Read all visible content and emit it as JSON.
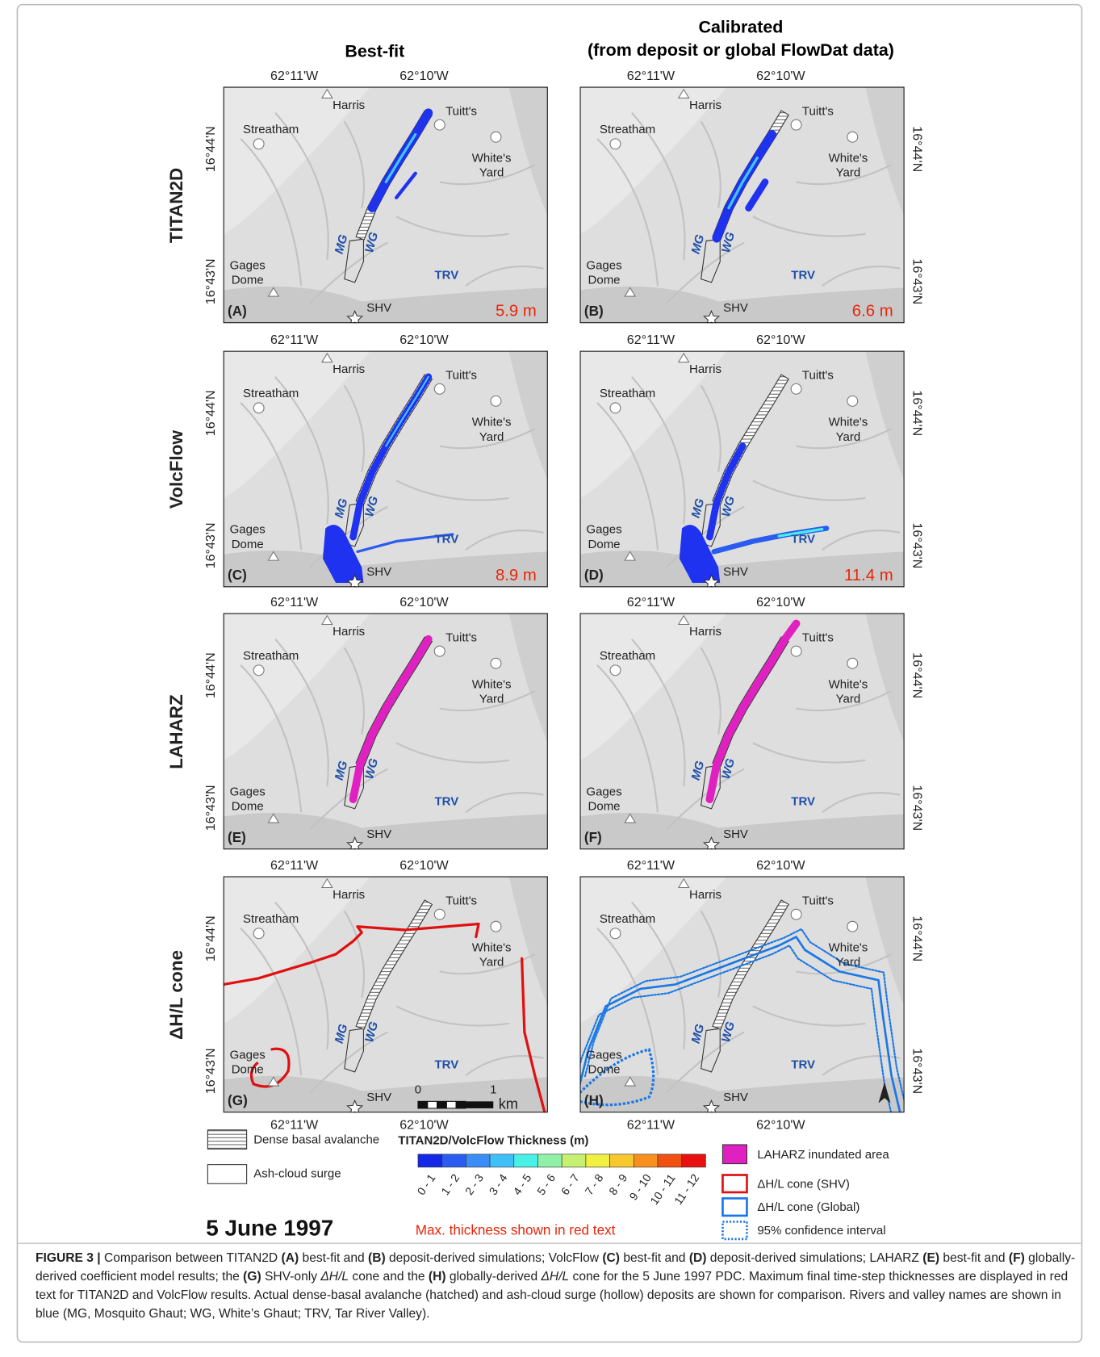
{
  "header": {
    "best_fit": "Best-fit",
    "calibrated": [
      "Calibrated",
      "(from deposit or global FlowDat data)"
    ]
  },
  "axis_labels": {
    "lon": [
      "62°11'W",
      "62°10'W"
    ],
    "lat": [
      "16°44'N",
      "16°43'N"
    ]
  },
  "place_labels": {
    "harris": "Harris",
    "tuitts": "Tuitt's",
    "streatham": "Streatham",
    "whites_yard": [
      "White's",
      "Yard"
    ],
    "gages_dome": [
      "Gages",
      "Dome"
    ],
    "shv": "SHV",
    "mg": "MG",
    "wg": "WG",
    "trv": "TRV"
  },
  "rows": [
    {
      "label": "TITAN2D",
      "panels": [
        {
          "letter": "(A)",
          "max_thickness": "5.9 m"
        },
        {
          "letter": "(B)",
          "max_thickness": "6.6 m"
        }
      ]
    },
    {
      "label": "VolcFlow",
      "panels": [
        {
          "letter": "(C)",
          "max_thickness": "8.9 m"
        },
        {
          "letter": "(D)",
          "max_thickness": "11.4 m"
        }
      ]
    },
    {
      "label": "LAHARZ",
      "panels": [
        {
          "letter": "(E)"
        },
        {
          "letter": "(F)"
        }
      ]
    },
    {
      "label": "ΔH/L cone",
      "panels": [
        {
          "letter": "(G)"
        },
        {
          "letter": "(H)"
        }
      ]
    }
  ],
  "scale_bar": {
    "start": "0",
    "end": "1",
    "unit": "km"
  },
  "legend": {
    "dense_basal": "Dense basal avalanche",
    "ash_cloud": "Ash-cloud surge",
    "thickness_title": "TITAN2D/VolcFlow Thickness (m)",
    "thickness_classes": [
      "0 - 1",
      "1 - 2",
      "2 - 3",
      "3 - 4",
      "4 - 5",
      "5 - 6",
      "6 - 7",
      "7 - 8",
      "8 - 9",
      "9 - 10",
      "10 - 11",
      "11 - 12"
    ],
    "thickness_colors": [
      "#1428e6",
      "#2a5cf0",
      "#3a8cf6",
      "#40c0f8",
      "#48f0e8",
      "#90f0a8",
      "#c8f070",
      "#f0f040",
      "#f8c830",
      "#f89020",
      "#f05010",
      "#e81010"
    ],
    "laharz": "LAHARZ inundated area",
    "cone_shv": "ΔH/L cone (SHV)",
    "cone_global": "ΔH/L cone (Global)",
    "confidence": "95% confidence interval",
    "max_note": "Max. thickness shown in red text"
  },
  "date": "5 June 1997",
  "caption": [
    "FIGURE 3 |",
    " Comparison between TITAN2D ",
    "(A)",
    " best-fit and ",
    "(B)",
    " deposit-derived simulations; VolcFlow ",
    "(C)",
    " best-fit and ",
    "(D)",
    " deposit-derived simulations; LAHARZ ",
    "(E)",
    " best-fit and ",
    "(F)",
    " globally-derived coefficient model results; the ",
    "(G)",
    " SHV-only ",
    "ΔH/L",
    " cone and the ",
    "(H)",
    " globally-derived ",
    "ΔH/L",
    " cone for the 5 June 1997 PDC. Maximum final time-step thicknesses are displayed in red text for TITAN2D and VolcFlow results. Actual dense-basal avalanche (hatched) and ash-cloud surge (hollow) deposits are shown for comparison. Rivers and valley names are shown in blue (MG, Mosquito Ghaut; WG, White’s Ghaut; TRV, Tar River Valley)."
  ]
}
